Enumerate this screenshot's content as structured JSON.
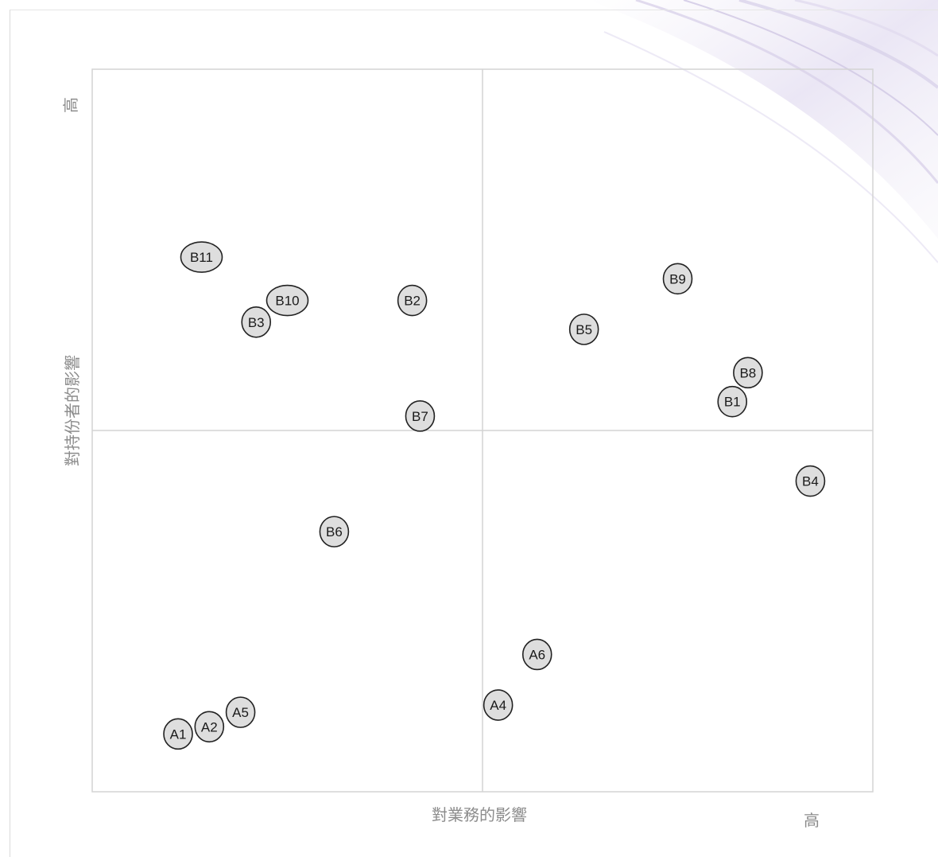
{
  "chart_data": {
    "type": "scatter",
    "title": "",
    "xlabel": "對業務的影響",
    "ylabel": "對持份者的影響",
    "x_high_label": "高",
    "y_high_label": "高",
    "xlim": [
      0,
      10
    ],
    "ylim": [
      0,
      10
    ],
    "quadrant_split": {
      "x": 5,
      "y": 5
    },
    "grid": false,
    "legend": "none",
    "marker_fill": "#dedede",
    "marker_stroke": "#222222",
    "points": [
      {
        "label": "B11",
        "x": 1.4,
        "y": 7.4
      },
      {
        "label": "B10",
        "x": 2.5,
        "y": 6.8
      },
      {
        "label": "B3",
        "x": 2.1,
        "y": 6.5
      },
      {
        "label": "B2",
        "x": 4.1,
        "y": 6.8
      },
      {
        "label": "B9",
        "x": 7.5,
        "y": 7.1
      },
      {
        "label": "B5",
        "x": 6.3,
        "y": 6.4
      },
      {
        "label": "B8",
        "x": 8.4,
        "y": 5.8
      },
      {
        "label": "B1",
        "x": 8.2,
        "y": 5.4
      },
      {
        "label": "B7",
        "x": 4.2,
        "y": 5.2
      },
      {
        "label": "B4",
        "x": 9.2,
        "y": 4.3
      },
      {
        "label": "B6",
        "x": 3.1,
        "y": 3.6
      },
      {
        "label": "A6",
        "x": 5.7,
        "y": 1.9
      },
      {
        "label": "A4",
        "x": 5.2,
        "y": 1.2
      },
      {
        "label": "A5",
        "x": 1.9,
        "y": 1.1
      },
      {
        "label": "A2",
        "x": 1.5,
        "y": 0.9
      },
      {
        "label": "A1",
        "x": 1.1,
        "y": 0.8
      }
    ]
  }
}
